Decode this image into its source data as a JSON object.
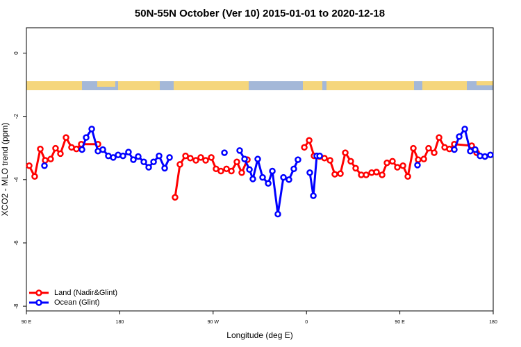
{
  "chart_data": {
    "type": "line",
    "title": "50N-55N October (Ver 10)   2015-01-01 to 2020-12-18",
    "x_label": "Longitude (deg E)",
    "y_label": "XCO2 - MLO trend (ppm)",
    "xlim": [
      90,
      540
    ],
    "xticks": [
      {
        "value": 90,
        "label": "90 E"
      },
      180,
      {
        "value": 270,
        "label": "90 W"
      },
      {
        "value": 360,
        "label": "0"
      },
      {
        "value": 450,
        "label": "90 E"
      },
      {
        "value": 540,
        "label": "180"
      }
    ],
    "ylim": [
      -8.15,
      0.8
    ],
    "yticks": [
      0,
      -2,
      -4,
      -6,
      -8
    ],
    "legend": "bottomleft",
    "series": [
      {
        "name": "Land (Nadir&Glint)",
        "color": "#ff0000",
        "x": [
          92.7,
          98.0,
          103.4,
          108.1,
          113.4,
          118.1,
          122.8,
          128.2,
          133.5,
          138.2,
          142.9,
          159.0,
          null,
          233.3,
          238.0,
          243.4,
          248.0,
          253.4,
          258.1,
          262.8,
          268.2,
          272.8,
          277.5,
          282.9,
          287.6,
          292.9,
          297.6,
          303.0,
          null,
          357.9,
          362.6,
          367.3,
          372.7,
          377.3,
          382.7,
          387.3,
          392.7,
          397.4,
          402.7,
          407.4,
          412.8,
          417.5,
          422.8,
          427.5,
          432.9,
          437.6,
          442.9,
          447.6,
          453.0,
          457.7,
          463.0,
          467.7,
          473.1,
          477.7,
          483.1,
          487.8,
          493.2,
          497.8,
          502.5,
          519.3,
          524.0
        ],
        "values": [
          -3.56,
          -3.9,
          -3.03,
          -3.39,
          -3.35,
          -3.01,
          -3.18,
          -2.67,
          -2.98,
          -3.03,
          -2.88,
          -2.88,
          null,
          -4.56,
          -3.52,
          -3.25,
          -3.32,
          -3.39,
          -3.3,
          -3.39,
          -3.3,
          -3.66,
          -3.73,
          -3.66,
          -3.73,
          -3.44,
          -3.78,
          -3.37,
          null,
          -2.98,
          -2.76,
          -3.25,
          -3.27,
          -3.32,
          -3.39,
          -3.83,
          -3.81,
          -3.15,
          -3.42,
          -3.64,
          -3.85,
          -3.85,
          -3.78,
          -3.76,
          -3.85,
          -3.47,
          -3.42,
          -3.61,
          -3.56,
          -3.9,
          -3.01,
          -3.37,
          -3.35,
          -3.01,
          -3.15,
          -2.67,
          -2.98,
          -3.03,
          -2.88,
          -2.93,
          -3.15
        ]
      },
      {
        "name": "Ocean (Glint)",
        "color": "#0000ff",
        "x": [
          107.4,
          null,
          143.6,
          147.6,
          153.0,
          159.0,
          163.7,
          169.0,
          173.7,
          178.4,
          183.1,
          188.4,
          193.1,
          197.8,
          203.2,
          207.9,
          212.6,
          217.9,
          223.3,
          228.0,
          null,
          280.9,
          null,
          295.6,
          300.3,
          305.0,
          308.3,
          313.0,
          317.7,
          323.1,
          327.1,
          332.4,
          337.8,
          343.1,
          347.8,
          351.8,
          null,
          363.2,
          366.6,
          369.9,
          372.7,
          null,
          467.0,
          null,
          502.5,
          507.2,
          512.6,
          517.9,
          522.6,
          527.3,
          532.0,
          537.3
        ],
        "values": [
          -3.56,
          null,
          -3.05,
          -2.67,
          -2.4,
          -3.1,
          -3.05,
          -3.25,
          -3.3,
          -3.22,
          -3.25,
          -3.13,
          -3.37,
          -3.27,
          -3.44,
          -3.61,
          -3.44,
          -3.25,
          -3.64,
          -3.3,
          null,
          -3.15,
          null,
          -3.08,
          -3.35,
          -3.68,
          -3.98,
          -3.35,
          -3.93,
          -4.12,
          -3.73,
          -5.09,
          -3.93,
          -4.0,
          -3.66,
          -3.37,
          null,
          -3.78,
          -4.51,
          -3.25,
          -3.25,
          null,
          -3.54,
          null,
          -3.05,
          -2.64,
          -2.4,
          -3.1,
          -3.05,
          -3.25,
          -3.27,
          -3.22
        ]
      }
    ]
  }
}
